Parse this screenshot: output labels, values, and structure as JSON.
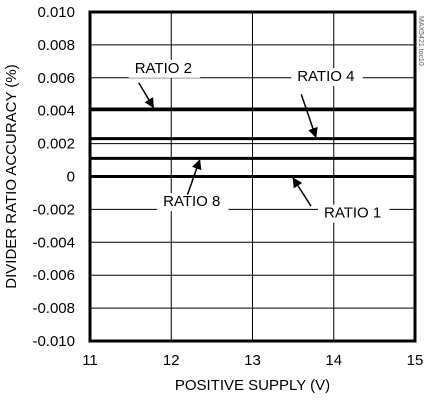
{
  "chart_data": {
    "type": "line",
    "title": "",
    "xlabel": "POSITIVE SUPPLY (V)",
    "ylabel": "DIVIDER RATIO ACCURACY (%)",
    "xlim": [
      11,
      15
    ],
    "ylim": [
      -0.01,
      0.01
    ],
    "x_ticks": [
      11,
      12,
      13,
      14,
      15
    ],
    "y_ticks": [
      0.01,
      0.008,
      0.006,
      0.004,
      0.002,
      0,
      -0.002,
      -0.004,
      -0.006,
      -0.008,
      -0.01
    ],
    "x_tick_labels": [
      "11",
      "12",
      "13",
      "14",
      "15"
    ],
    "y_tick_labels": [
      "0.010",
      "0.008",
      "0.006",
      "0.004",
      "0.002",
      "0",
      "-0.002",
      "-0.004",
      "-0.006",
      "-0.008",
      "-0.010"
    ],
    "grid": true,
    "watermark": "MAX5421 toc10",
    "series": [
      {
        "name": "RATIO 2",
        "x": [
          11,
          15
        ],
        "y": [
          0.0041,
          0.0041
        ]
      },
      {
        "name": "RATIO 4",
        "x": [
          11,
          15
        ],
        "y": [
          0.0023,
          0.0023
        ]
      },
      {
        "name": "RATIO 8",
        "x": [
          11,
          15
        ],
        "y": [
          0.0011,
          0.0011
        ]
      },
      {
        "name": "RATIO 1",
        "x": [
          11,
          15
        ],
        "y": [
          0.0,
          0.0
        ]
      }
    ],
    "annotations": [
      {
        "text": "RATIO 2",
        "series": "RATIO 2",
        "label_x": 11.55,
        "label_y": 0.0063,
        "arrow_from": [
          11.6,
          0.0057
        ],
        "arrow_to": [
          11.78,
          0.0042
        ]
      },
      {
        "text": "RATIO 4",
        "series": "RATIO 4",
        "label_x": 13.55,
        "label_y": 0.0058,
        "arrow_from": [
          13.6,
          0.005
        ],
        "arrow_to": [
          13.78,
          0.0024
        ]
      },
      {
        "text": "RATIO 8",
        "series": "RATIO 8",
        "label_x": 11.9,
        "label_y": -0.0018,
        "arrow_from": [
          12.2,
          -0.0011
        ],
        "arrow_to": [
          12.35,
          0.001
        ]
      },
      {
        "text": "RATIO 1",
        "series": "RATIO 1",
        "label_x": 13.88,
        "label_y": -0.0025,
        "arrow_from": [
          13.72,
          -0.0018
        ],
        "arrow_to": [
          13.5,
          -0.0001
        ]
      }
    ]
  }
}
